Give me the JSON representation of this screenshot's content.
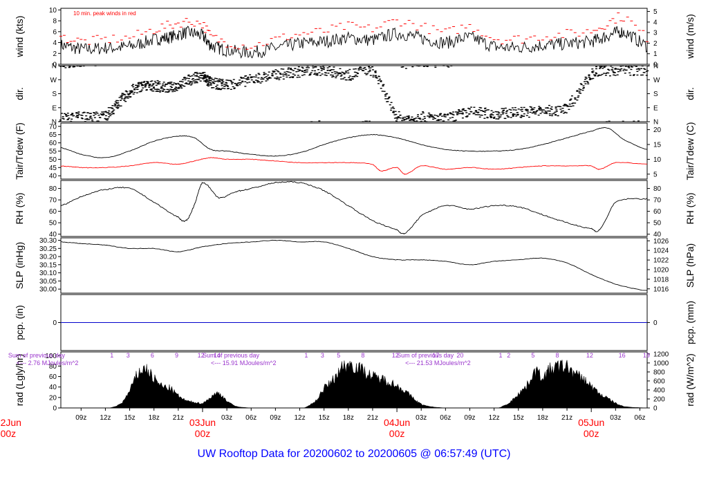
{
  "page_title": "UW Rooftop Data for 20200602  to  20200605 @ 06:57:49  (UTC)",
  "colors": {
    "series": "#000000",
    "peak": "#ff0000",
    "precip": "#0000cc",
    "solar_text": "#9933cc",
    "date_label": "#ff0000",
    "title": "#0000ff"
  },
  "chart_data": {
    "type": "line",
    "x_time_axis": {
      "unit": "hours since 2020-06-02 00z",
      "range": [
        6.5,
        78.9
      ],
      "hour_ticks": [
        {
          "t": 9,
          "label": "09z"
        },
        {
          "t": 12,
          "label": "12z"
        },
        {
          "t": 15,
          "label": "15z"
        },
        {
          "t": 18,
          "label": "18z"
        },
        {
          "t": 21,
          "label": "21z"
        },
        {
          "t": 27,
          "label": "03z"
        },
        {
          "t": 30,
          "label": "06z"
        },
        {
          "t": 33,
          "label": "09z"
        },
        {
          "t": 36,
          "label": "12z"
        },
        {
          "t": 39,
          "label": "15z"
        },
        {
          "t": 42,
          "label": "18z"
        },
        {
          "t": 45,
          "label": "21z"
        },
        {
          "t": 51,
          "label": "03z"
        },
        {
          "t": 54,
          "label": "06z"
        },
        {
          "t": 57,
          "label": "09z"
        },
        {
          "t": 60,
          "label": "12z"
        },
        {
          "t": 63,
          "label": "15z"
        },
        {
          "t": 66,
          "label": "18z"
        },
        {
          "t": 69,
          "label": "21z"
        },
        {
          "t": 75,
          "label": "03z"
        },
        {
          "t": 78,
          "label": "06z"
        }
      ],
      "day_labels": [
        {
          "t": 0,
          "date": "02Jun",
          "time": "00z"
        },
        {
          "t": 24,
          "date": "03Jun",
          "time": "00z"
        },
        {
          "t": 48,
          "date": "04Jun",
          "time": "00z"
        },
        {
          "t": 72,
          "date": "05Jun",
          "time": "00z"
        }
      ]
    },
    "panels": [
      {
        "id": "wind",
        "ylabel_left": "wind (kts)",
        "ylabel_right": "wind (m/s)",
        "ylim": [
          0,
          10.3
        ],
        "left_ticks": [
          0,
          2,
          4,
          6,
          8,
          10
        ],
        "right_ticks": [
          {
            "label": "0",
            "kts": 0
          },
          {
            "label": "1",
            "kts": 1.944
          },
          {
            "label": "2",
            "kts": 3.888
          },
          {
            "label": "3",
            "kts": 5.832
          },
          {
            "label": "4",
            "kts": 7.776
          },
          {
            "label": "5",
            "kts": 9.72
          }
        ],
        "annotation": "10 min. peak winds in red",
        "series": [
          {
            "name": "wind speed (kts)",
            "x": [
              6.5,
              9,
              12,
              15,
              18,
              20,
              22,
              24,
              25,
              27,
              30,
              33,
              36,
              39,
              42,
              45,
              48,
              51,
              54,
              57,
              60,
              63,
              66,
              69,
              72,
              74,
              76,
              78.9
            ],
            "y": [
              3.5,
              2.8,
              3.0,
              3.3,
              4.5,
              5.0,
              5.8,
              5.2,
              3.5,
              2.6,
              2.2,
              3.0,
              3.8,
              4.2,
              4.8,
              4.5,
              5.6,
              4.8,
              4.0,
              4.9,
              3.3,
              3.1,
              3.5,
              3.8,
              4.2,
              5.2,
              5.9,
              3.4
            ]
          },
          {
            "name": "10 min. peak (kts)",
            "x": [
              6.5,
              9,
              12,
              15,
              18,
              20,
              22,
              24,
              25,
              27,
              30,
              33,
              36,
              39,
              42,
              45,
              48,
              51,
              54,
              57,
              60,
              63,
              66,
              69,
              72,
              74,
              76,
              78.9
            ],
            "y": [
              4.6,
              3.9,
              4.2,
              4.6,
              6.0,
              6.8,
              7.5,
              7.0,
              4.8,
              3.7,
              3.1,
              4.2,
              5.2,
              5.7,
              6.6,
              6.2,
              7.6,
              6.6,
              5.5,
              6.6,
              4.5,
              4.3,
              4.8,
              5.2,
              5.8,
              7.2,
              8.3,
              4.6
            ]
          }
        ]
      },
      {
        "id": "dir",
        "ylabel_left": "dir.",
        "ylabel_right": "dir.",
        "ylim": [
          0,
          360
        ],
        "tick_labels": [
          {
            "v": 0,
            "label": "N"
          },
          {
            "v": 90,
            "label": "E"
          },
          {
            "v": 180,
            "label": "S"
          },
          {
            "v": 270,
            "label": "W"
          },
          {
            "v": 360,
            "label": "N"
          }
        ],
        "series": [
          {
            "name": "wind direction (deg)",
            "x": [
              6.5,
              9,
              12,
              14,
              16,
              18,
              20,
              22,
              24,
              25,
              27,
              30,
              33,
              36,
              39,
              42,
              45,
              48,
              51,
              54,
              57,
              60,
              63,
              66,
              69,
              72,
              75,
              78.9
            ],
            "y": [
              20,
              30,
              40,
              140,
              220,
              230,
              220,
              260,
              290,
              250,
              240,
              270,
              300,
              320,
              330,
              300,
              320,
              40,
              30,
              20,
              60,
              50,
              60,
              70,
              90,
              300,
              330,
              330
            ]
          }
        ]
      },
      {
        "id": "temp",
        "ylabel_left": "Tair/Tdew (F)",
        "ylabel_right": "Tair/Tdew (C)",
        "ylim": [
          38,
          72
        ],
        "left_ticks": [
          40,
          45,
          50,
          55,
          60,
          65,
          70
        ],
        "right_ticks": [
          {
            "label": "5",
            "f": 41
          },
          {
            "label": "10",
            "f": 50
          },
          {
            "label": "15",
            "f": 59
          },
          {
            "label": "20",
            "f": 68
          }
        ],
        "series": [
          {
            "name": "Tair (F)",
            "x": [
              6.5,
              9,
              12,
              15,
              18,
              21,
              23,
              25,
              27,
              30,
              33,
              36,
              39,
              42,
              45,
              48,
              51,
              54,
              57,
              60,
              63,
              66,
              69,
              72,
              74,
              76,
              78.9
            ],
            "y": [
              57,
              53,
              51,
              55,
              61,
              64,
              63,
              56,
              55,
              53,
              52,
              54,
              59,
              63,
              65,
              63,
              59,
              56,
              55,
              55,
              56,
              59,
              63,
              67,
              69,
              62,
              56
            ]
          },
          {
            "name": "Tdew (F)",
            "x": [
              6.5,
              9,
              12,
              15,
              18,
              21,
              23,
              25,
              27,
              30,
              33,
              36,
              39,
              42,
              45,
              46,
              48,
              49,
              51,
              54,
              57,
              60,
              63,
              66,
              69,
              72,
              73,
              75,
              78.9
            ],
            "y": [
              46,
              45,
              45,
              46,
              48,
              47,
              49,
              51,
              50,
              50,
              49,
              48,
              48,
              48,
              47,
              43,
              45,
              41,
              46,
              44,
              45,
              44,
              45,
              46,
              46,
              46,
              44,
              48,
              47
            ]
          }
        ]
      },
      {
        "id": "rh",
        "ylabel_left": "RH (%)",
        "ylabel_right": "RH (%)",
        "ylim": [
          38,
          87
        ],
        "left_ticks": [
          40,
          50,
          60,
          70,
          80
        ],
        "series": [
          {
            "name": "RH (%)",
            "x": [
              6.5,
              9,
              12,
              15,
              18,
              21,
              22,
              23,
              24,
              26,
              28,
              30,
              33,
              36,
              39,
              42,
              45,
              48,
              49,
              51,
              54,
              57,
              60,
              63,
              66,
              69,
              72,
              73,
              75,
              78.9
            ],
            "y": [
              65,
              73,
              79,
              80,
              68,
              55,
              52,
              66,
              85,
              72,
              77,
              80,
              85,
              85,
              78,
              65,
              52,
              44,
              41,
              56,
              65,
              62,
              65,
              64,
              57,
              50,
              45,
              44,
              68,
              71
            ]
          }
        ]
      },
      {
        "id": "slp",
        "ylabel_left": "SLP (inHg)",
        "ylabel_right": "SLP (hPa)",
        "ylim": [
          29.975,
          30.315
        ],
        "left_ticks": [
          30.0,
          30.05,
          30.1,
          30.15,
          30.2,
          30.25,
          30.3
        ],
        "left_tick_labels": [
          "30.00",
          "30.05",
          "30.10",
          "30.15",
          "30.20",
          "30.25",
          "30.30"
        ],
        "right_ticks": [
          {
            "label": "1016",
            "inhg": 30.0015
          },
          {
            "label": "1018",
            "inhg": 30.0606
          },
          {
            "label": "1020",
            "inhg": 30.1196
          },
          {
            "label": "1022",
            "inhg": 30.1787
          },
          {
            "label": "1024",
            "inhg": 30.2378
          },
          {
            "label": "1026",
            "inhg": 30.2968
          }
        ],
        "series": [
          {
            "name": "SLP (inHg)",
            "x": [
              6.5,
              9,
              12,
              15,
              18,
              21,
              24,
              27,
              30,
              33,
              36,
              39,
              42,
              45,
              48,
              51,
              54,
              57,
              60,
              63,
              66,
              69,
              72,
              75,
              78.9
            ],
            "y": [
              30.29,
              30.28,
              30.27,
              30.25,
              30.25,
              30.23,
              30.26,
              30.28,
              30.29,
              30.3,
              30.29,
              30.29,
              30.25,
              30.2,
              30.18,
              30.18,
              30.17,
              30.15,
              30.17,
              30.18,
              30.19,
              30.16,
              30.09,
              30.03,
              29.99
            ]
          }
        ]
      },
      {
        "id": "pcp",
        "ylabel_left": "pcp. (in)",
        "ylabel_right": "pcp. (mm)",
        "ylim": [
          -1,
          1
        ],
        "left_ticks": [
          0
        ],
        "right_tick_label": "0",
        "series": [
          {
            "name": "precipitation (in)",
            "x": [
              6.5,
              78.9
            ],
            "y": [
              0,
              0
            ]
          }
        ]
      },
      {
        "id": "rad",
        "type": "area",
        "ylabel_left": "rad (Lgly/hr)",
        "ylabel_right": "rad (W/m^2)",
        "ylim": [
          0,
          107
        ],
        "left_ticks": [
          0,
          20,
          40,
          60,
          80,
          100
        ],
        "right_ticks": [
          {
            "label": "0",
            "w": 0
          },
          {
            "label": "200",
            "w": 200
          },
          {
            "label": "400",
            "w": 400
          },
          {
            "label": "600",
            "w": 600
          },
          {
            "label": "800",
            "w": 800
          },
          {
            "label": "1000",
            "w": 1000
          },
          {
            "label": "1200",
            "w": 1200
          }
        ],
        "series": [
          {
            "name": "solar radiation (Lgly/hr)",
            "x": [
              6.5,
              12.5,
              14,
              15,
              16,
              17,
              18,
              19,
              20,
              21,
              22,
              23,
              24,
              25,
              26,
              27,
              28,
              30,
              36.5,
              38,
              39,
              40,
              41,
              42,
              43,
              44,
              45,
              46,
              47,
              48,
              49,
              50,
              51,
              52,
              54,
              60.5,
              62,
              63,
              64,
              65,
              66,
              67,
              68,
              69,
              70,
              71,
              72,
              73,
              74,
              75,
              76,
              78.9
            ],
            "y": [
              0,
              0,
              10,
              35,
              70,
              80,
              60,
              45,
              40,
              25,
              15,
              12,
              10,
              22,
              30,
              15,
              4,
              0,
              0,
              15,
              40,
              55,
              80,
              90,
              85,
              75,
              65,
              60,
              55,
              45,
              35,
              20,
              8,
              3,
              0,
              0,
              12,
              30,
              45,
              75,
              65,
              80,
              85,
              85,
              70,
              60,
              45,
              30,
              20,
              10,
              3,
              0
            ]
          }
        ],
        "day_notes": [
          {
            "t": 0,
            "line1": "Sum of previous day",
            "line2": "<--- 2.76 MJoules/m^2",
            "hours": [
              "1",
              "3",
              "6",
              "9",
              "12",
              "14"
            ]
          },
          {
            "t": 24,
            "line1": "Sum of previous day",
            "line2": "<--- 15.91 MJoules/m^2",
            "hours": [
              "1",
              "3",
              "5",
              "8",
              "12",
              "17",
              "20"
            ]
          },
          {
            "t": 48,
            "line1": "Sum of previous day",
            "line2": "<--- 21.53 MJoules/m^2",
            "hours": [
              "1",
              "2",
              "5",
              "8",
              "12",
              "16",
              "19"
            ]
          }
        ]
      }
    ]
  }
}
